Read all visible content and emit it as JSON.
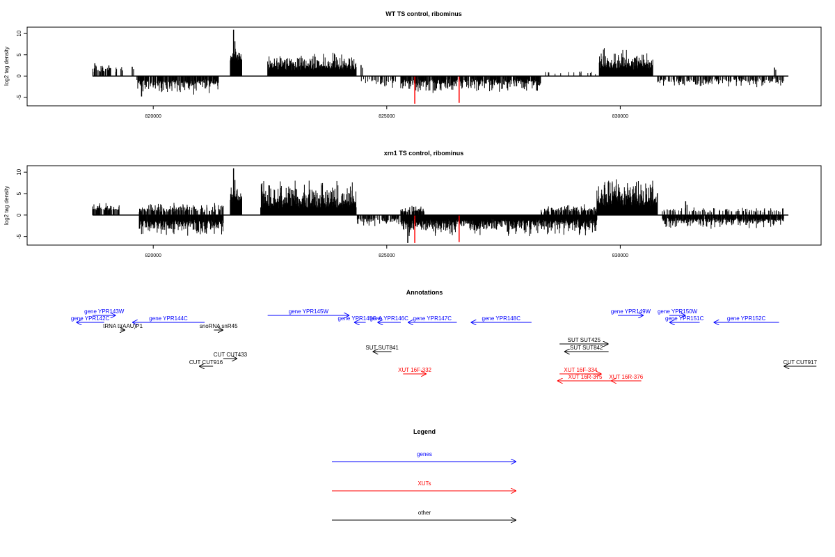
{
  "colors": {
    "gene": "#0000ff",
    "xut": "#ff0000",
    "other": "#000000",
    "axis": "#000000",
    "highlight": "#ff0000"
  },
  "chart_data": [
    {
      "type": "bar",
      "title": "WT TS control, ribominus",
      "ylabel": "log2 tag density",
      "xlim": [
        817300,
        834300
      ],
      "ylim": [
        -7,
        11.5
      ],
      "xticks": [
        820000,
        825000,
        830000
      ],
      "xtick_labels": [
        "820000",
        "825000",
        "830000"
      ],
      "yticks": [
        -5,
        0,
        5,
        10
      ],
      "ytick_labels": [
        "-5",
        "0",
        "5",
        "10"
      ],
      "baseline_range": [
        818700,
        833600
      ],
      "regions": [
        {
          "from": 818700,
          "to": 819350,
          "strand": 1,
          "min": 0.8,
          "max": 2.8,
          "density": 0.35
        },
        {
          "from": 819650,
          "to": 821400,
          "strand": -1,
          "min": 0.8,
          "max": 4.2,
          "density": 0.7
        },
        {
          "from": 821650,
          "to": 821900,
          "strand": 1,
          "min": 3.5,
          "max": 7.5,
          "density": 1
        },
        {
          "from": 822450,
          "to": 824350,
          "strand": 1,
          "min": 1.2,
          "max": 5.5,
          "density": 1
        },
        {
          "from": 824450,
          "to": 825200,
          "strand": -1,
          "min": 0.6,
          "max": 2.5,
          "density": 0.3
        },
        {
          "from": 825300,
          "to": 828300,
          "strand": -1,
          "min": 0.6,
          "max": 3.8,
          "density": 0.7
        },
        {
          "from": 828400,
          "to": 829500,
          "strand": 1,
          "min": 0.4,
          "max": 1.2,
          "density": 0.12
        },
        {
          "from": 829550,
          "to": 830700,
          "strand": 1,
          "min": 1.5,
          "max": 6.5,
          "density": 1
        },
        {
          "from": 830800,
          "to": 833500,
          "strand": -1,
          "min": 0.5,
          "max": 2.5,
          "density": 0.35
        }
      ],
      "spikes": [
        {
          "x": 821720,
          "y": 10.9
        },
        {
          "x": 818750,
          "y": 3.0
        },
        {
          "x": 819050,
          "y": 2.5
        },
        {
          "x": 819550,
          "y": 2.2
        },
        {
          "x": 819750,
          "y": -4.8
        },
        {
          "x": 824450,
          "y": 2.6
        },
        {
          "x": 833300,
          "y": 2.0
        }
      ],
      "highlight_bars": [
        {
          "x": 825600,
          "y": -6.5
        },
        {
          "x": 826550,
          "y": -6.3
        }
      ]
    },
    {
      "type": "bar",
      "title": "xrn1 TS control, ribominus",
      "ylabel": "log2 tag density",
      "xlim": [
        817300,
        834300
      ],
      "ylim": [
        -7,
        11.5
      ],
      "xticks": [
        820000,
        825000,
        830000
      ],
      "xtick_labels": [
        "820000",
        "825000",
        "830000"
      ],
      "yticks": [
        -5,
        0,
        5,
        10
      ],
      "ytick_labels": [
        "-5",
        "0",
        "5",
        "10"
      ],
      "baseline_range": [
        818700,
        833600
      ],
      "regions": [
        {
          "from": 818700,
          "to": 819300,
          "strand": 1,
          "min": 1.0,
          "max": 2.8,
          "density": 0.4
        },
        {
          "from": 819700,
          "to": 821500,
          "strand": 1,
          "min": 0.6,
          "max": 2.8,
          "density": 0.45
        },
        {
          "from": 819700,
          "to": 821500,
          "strand": -1,
          "min": 1.0,
          "max": 5.0,
          "density": 0.95
        },
        {
          "from": 821650,
          "to": 821900,
          "strand": 1,
          "min": 3.0,
          "max": 7.5,
          "density": 1
        },
        {
          "from": 822300,
          "to": 824350,
          "strand": 1,
          "min": 1.5,
          "max": 8.5,
          "density": 1
        },
        {
          "from": 824350,
          "to": 825300,
          "strand": -1,
          "min": 0.5,
          "max": 2.5,
          "density": 0.5
        },
        {
          "from": 825300,
          "to": 829500,
          "strand": -1,
          "min": 0.8,
          "max": 4.8,
          "density": 1
        },
        {
          "from": 825300,
          "to": 825800,
          "strand": 1,
          "min": 0.5,
          "max": 2.0,
          "density": 0.6
        },
        {
          "from": 828300,
          "to": 829500,
          "strand": 1,
          "min": 0.5,
          "max": 2.2,
          "density": 0.55
        },
        {
          "from": 829500,
          "to": 830800,
          "strand": 1,
          "min": 2.0,
          "max": 8.5,
          "density": 1
        },
        {
          "from": 830900,
          "to": 833500,
          "strand": -1,
          "min": 0.6,
          "max": 3.0,
          "density": 0.75
        },
        {
          "from": 830900,
          "to": 833500,
          "strand": 1,
          "min": 0.5,
          "max": 1.8,
          "density": 0.2
        }
      ],
      "spikes": [
        {
          "x": 821720,
          "y": 10.9
        },
        {
          "x": 825450,
          "y": -6.5
        },
        {
          "x": 831400,
          "y": 3.2
        }
      ],
      "highlight_bars": [
        {
          "x": 825600,
          "y": -6.5
        },
        {
          "x": 826550,
          "y": -6.3
        }
      ]
    }
  ],
  "annotations": {
    "title": "Annotations",
    "items": [
      {
        "label": "gene YPR143W",
        "cls": "gene",
        "from": 818700,
        "to": 819200,
        "row": 0
      },
      {
        "label": "gene YPR142C",
        "cls": "gene",
        "from": 818350,
        "to": 818950,
        "row": 1,
        "rev": true
      },
      {
        "label": "gene YPR144C",
        "cls": "gene",
        "from": 819550,
        "to": 821100,
        "row": 1,
        "rev": true
      },
      {
        "label": "tRNA tI(AAU)P1",
        "cls": "other",
        "from": 819300,
        "to": 819400,
        "row": 2
      },
      {
        "label": "snoRNA snR45",
        "cls": "other",
        "from": 821300,
        "to": 821500,
        "row": 2
      },
      {
        "label": "gene YPR145W",
        "cls": "gene",
        "from": 822450,
        "to": 824200,
        "row": 0
      },
      {
        "label": "gene YPR145C-A",
        "cls": "gene",
        "from": 824300,
        "to": 824550,
        "row": 1,
        "rev": true
      },
      {
        "label": "gene YPR146C",
        "cls": "gene",
        "from": 824800,
        "to": 825300,
        "row": 1,
        "rev": true
      },
      {
        "label": "gene YPR147C",
        "cls": "gene",
        "from": 825450,
        "to": 826500,
        "row": 1,
        "rev": true
      },
      {
        "label": "gene YPR148C",
        "cls": "gene",
        "from": 826800,
        "to": 828100,
        "row": 1,
        "rev": true
      },
      {
        "label": "gene YPR149W",
        "cls": "gene",
        "from": 829950,
        "to": 830500,
        "row": 0
      },
      {
        "label": "gene YPR150W",
        "cls": "gene",
        "from": 831050,
        "to": 831400,
        "row": 0
      },
      {
        "label": "gene YPR151C",
        "cls": "gene",
        "from": 831050,
        "to": 831700,
        "row": 1,
        "rev": true
      },
      {
        "label": "gene YPR152C",
        "cls": "gene",
        "from": 832000,
        "to": 833400,
        "row": 1,
        "rev": true
      },
      {
        "label": "SUT SUT425",
        "cls": "other",
        "from": 828700,
        "to": 829750,
        "row": 4
      },
      {
        "label": "SUT SUT842",
        "cls": "other",
        "from": 828800,
        "to": 829750,
        "row": 5,
        "rev": true
      },
      {
        "label": "SUT SUT841",
        "cls": "other",
        "from": 824700,
        "to": 825100,
        "row": 5,
        "rev": true
      },
      {
        "label": "CUT CUT433",
        "cls": "other",
        "from": 821500,
        "to": 821800,
        "row": 6
      },
      {
        "label": "CUT CUT916",
        "cls": "other",
        "from": 820980,
        "to": 821280,
        "row": 7,
        "rev": true
      },
      {
        "label": "XUT 16F-332",
        "cls": "xut",
        "from": 825350,
        "to": 825850,
        "row": 8
      },
      {
        "label": "XUT 16F-334",
        "cls": "xut",
        "from": 828700,
        "to": 829600,
        "row": 9
      },
      {
        "label": "XUT 16R-375",
        "cls": "xut",
        "from": 828650,
        "to": 829850,
        "row": 10,
        "rev": true
      },
      {
        "label": "XUT 16R-376",
        "cls": "xut",
        "from": 829800,
        "to": 830450,
        "row": 10,
        "rev": true
      },
      {
        "label": "CUT CUT917",
        "cls": "other",
        "from": 833500,
        "to": 834200,
        "row": 7,
        "rev": true
      }
    ]
  },
  "legend": {
    "title": "Legend",
    "entries": [
      {
        "label": "genes",
        "cls": "gene"
      },
      {
        "label": "XUTs",
        "cls": "xut"
      },
      {
        "label": "other",
        "cls": "other"
      }
    ]
  }
}
